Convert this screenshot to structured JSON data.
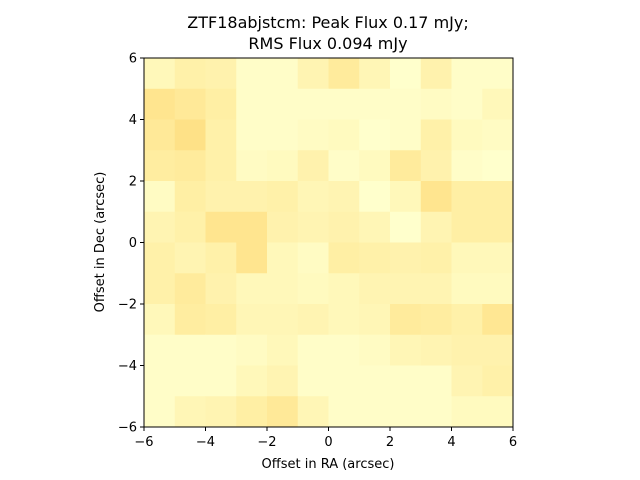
{
  "chart_data": {
    "type": "heatmap",
    "title_lines": [
      "ZTF18abjstcm: Peak Flux 0.17 mJy;",
      "RMS Flux 0.094 mJy"
    ],
    "xlabel": "Offset in RA (arcsec)",
    "ylabel": "Offset in Dec (arcsec)",
    "xlim": [
      -6,
      6
    ],
    "ylim": [
      -6,
      6
    ],
    "xticks": [
      -6,
      -4,
      -2,
      0,
      2,
      4,
      6
    ],
    "yticks": [
      -6,
      -4,
      -2,
      0,
      2,
      4,
      6
    ],
    "xtick_labels": [
      "−6",
      "−4",
      "−2",
      "0",
      "2",
      "4",
      "6"
    ],
    "ytick_labels": [
      "−6",
      "−4",
      "−2",
      "0",
      "2",
      "4",
      "6"
    ],
    "grid": false,
    "colormap": [
      "#ffffcc",
      "#ffeda0",
      "#fed976"
    ],
    "cell_size_arcsec": 1,
    "values_top_to_bottom": [
      [
        0.2,
        0.4,
        0.35,
        0.05,
        0.05,
        0.3,
        0.55,
        0.25,
        0.0,
        0.35,
        0.05,
        0.05
      ],
      [
        0.7,
        0.6,
        0.45,
        0.05,
        0.05,
        0.05,
        0.05,
        0.05,
        0.05,
        0.1,
        0.05,
        0.2
      ],
      [
        0.6,
        0.8,
        0.4,
        0.05,
        0.05,
        0.1,
        0.15,
        0.0,
        0.05,
        0.4,
        0.15,
        0.1
      ],
      [
        0.5,
        0.55,
        0.4,
        0.1,
        0.15,
        0.35,
        0.05,
        0.15,
        0.55,
        0.35,
        0.05,
        0.0
      ],
      [
        0.1,
        0.45,
        0.35,
        0.35,
        0.4,
        0.25,
        0.3,
        0.0,
        0.2,
        0.7,
        0.45,
        0.45
      ],
      [
        0.3,
        0.4,
        0.7,
        0.7,
        0.35,
        0.3,
        0.35,
        0.25,
        0.0,
        0.3,
        0.45,
        0.45
      ],
      [
        0.4,
        0.3,
        0.4,
        0.7,
        0.2,
        0.1,
        0.45,
        0.4,
        0.35,
        0.4,
        0.2,
        0.2
      ],
      [
        0.4,
        0.55,
        0.35,
        0.2,
        0.2,
        0.15,
        0.2,
        0.3,
        0.3,
        0.3,
        0.15,
        0.15
      ],
      [
        0.2,
        0.5,
        0.45,
        0.25,
        0.25,
        0.3,
        0.2,
        0.25,
        0.55,
        0.5,
        0.4,
        0.65
      ],
      [
        0.05,
        0.05,
        0.05,
        0.1,
        0.2,
        0.05,
        0.05,
        0.1,
        0.25,
        0.3,
        0.35,
        0.35
      ],
      [
        0.05,
        0.05,
        0.05,
        0.2,
        0.3,
        0.05,
        0.05,
        0.05,
        0.05,
        0.05,
        0.3,
        0.4
      ],
      [
        0.05,
        0.25,
        0.3,
        0.45,
        0.6,
        0.25,
        0.05,
        0.05,
        0.05,
        0.05,
        0.15,
        0.15
      ]
    ]
  }
}
